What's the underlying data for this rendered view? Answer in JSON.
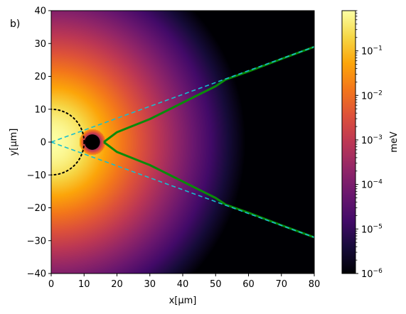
{
  "chart_data": {
    "type": "heatmap",
    "panel_label": "b)",
    "xlabel": "x[μm]",
    "ylabel": "y[μm]",
    "xlim": [
      0,
      80
    ],
    "ylim": [
      -40,
      40
    ],
    "x_ticks": [
      0,
      10,
      20,
      30,
      40,
      50,
      60,
      70,
      80
    ],
    "y_ticks": [
      -40,
      -30,
      -20,
      -10,
      0,
      10,
      20,
      30,
      40
    ],
    "colormap": "inferno",
    "grid": false,
    "colorbar": {
      "label": "meV",
      "scale": "log",
      "range": [
        1e-06,
        0.8
      ],
      "ticks": [
        {
          "exp": -6,
          "label_base": "10",
          "label_exp": "−6"
        },
        {
          "exp": -5,
          "label_base": "10",
          "label_exp": "−5"
        },
        {
          "exp": -4,
          "label_base": "10",
          "label_exp": "−4"
        },
        {
          "exp": -3,
          "label_base": "10",
          "label_exp": "−3"
        },
        {
          "exp": -2,
          "label_base": "10",
          "label_exp": "−2"
        },
        {
          "exp": -1,
          "label_base": "10",
          "label_exp": "−1"
        }
      ]
    },
    "field": {
      "source_x": 0,
      "source_y": 0,
      "core_radius": 10,
      "falloff_length": 6.5,
      "peak_log10": -0.1,
      "hole_x": 12.5,
      "hole_y": 0,
      "hole_radius": 1.8
    },
    "dotted_circle": {
      "cx": 0,
      "cy": 0,
      "r": 10,
      "color": "#000000"
    },
    "obstacle": {
      "cx": 12.5,
      "cy": 0,
      "r": 1.8,
      "color": "#000000"
    },
    "dashed_lines": {
      "color": "#17becf",
      "lines": [
        {
          "x": [
            0,
            80
          ],
          "y": [
            0,
            29
          ]
        },
        {
          "x": [
            0,
            80
          ],
          "y": [
            0,
            -29
          ]
        }
      ]
    },
    "green_path": {
      "color": "#0a8a0a",
      "series": [
        {
          "x": [
            16,
            20,
            25,
            30,
            35,
            40,
            45,
            50,
            53,
            60,
            70,
            80
          ],
          "y": [
            0,
            3,
            5,
            7,
            9.5,
            12,
            14.5,
            17,
            19,
            21.5,
            25.3,
            29
          ]
        },
        {
          "x": [
            16,
            20,
            25,
            30,
            35,
            40,
            45,
            50,
            53,
            60,
            70,
            80
          ],
          "y": [
            0,
            -3,
            -5,
            -7,
            -9.5,
            -12,
            -14.5,
            -17,
            -19,
            -21.5,
            -25.3,
            -29
          ]
        }
      ]
    }
  }
}
